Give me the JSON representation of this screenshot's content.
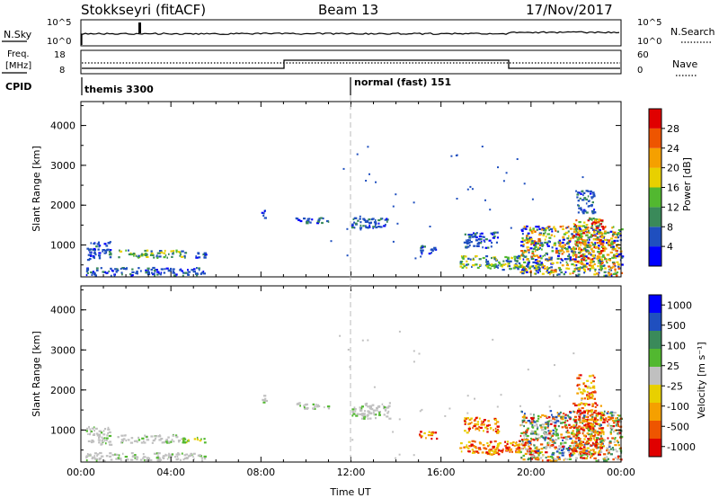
{
  "header": {
    "station": "Stokkseyri (fitACF)",
    "beam": "Beam 13",
    "date": "17/Nov/2017"
  },
  "nsky": {
    "label": "N.Sky",
    "left_ticks": [
      "10^5",
      "10^0"
    ],
    "right_ticks": [
      "10^5",
      "10^0"
    ],
    "right_label": "N.Search"
  },
  "freq": {
    "label": "Freq.",
    "unit": "[MHz]",
    "left_ticks": [
      "18",
      "8"
    ],
    "right_ticks": [
      "60",
      "0"
    ],
    "right_label": "Nave"
  },
  "cpid": {
    "label": "CPID",
    "segments": [
      {
        "start_h": 0,
        "text": "themis 3300"
      },
      {
        "start_h": 12,
        "text": "normal (fast) 151"
      }
    ]
  },
  "colors": {
    "scale": [
      "#0000ff",
      "#1f4fbf",
      "#3a8a5a",
      "#52b830",
      "#e8d000",
      "#f5a000",
      "#ee5500",
      "#e00000"
    ],
    "ground_scatter": "#c0c0c0",
    "midline": "#bbbbbb"
  },
  "chart_data": [
    {
      "type": "heatmap",
      "title": "Power",
      "xlabel": "",
      "ylabel": "Slant Range [km]",
      "xlim": [
        0,
        24
      ],
      "ylim": [
        200,
        4600
      ],
      "x_ticks": [],
      "y_ticks": [
        "1000",
        "2000",
        "3000",
        "4000"
      ],
      "colorbar": {
        "label": "Power [dB]",
        "range": [
          0,
          32
        ],
        "ticks": [
          "4",
          "8",
          "12",
          "16",
          "20",
          "24",
          "28"
        ]
      },
      "echo_regions": [
        {
          "t": [
            0.2,
            5.5
          ],
          "r": [
            250,
            450
          ],
          "level": "low"
        },
        {
          "t": [
            0.2,
            1.3
          ],
          "r": [
            650,
            1100
          ],
          "level": "low"
        },
        {
          "t": [
            1.6,
            4.5
          ],
          "r": [
            700,
            900
          ],
          "level": "mid"
        },
        {
          "t": [
            4.5,
            5.5
          ],
          "r": [
            700,
            850
          ],
          "level": "low"
        },
        {
          "t": [
            8.0,
            8.2
          ],
          "r": [
            1700,
            1900
          ],
          "level": "low"
        },
        {
          "t": [
            9.5,
            11.0
          ],
          "r": [
            1550,
            1700
          ],
          "level": "low"
        },
        {
          "t": [
            12.0,
            13.7
          ],
          "r": [
            1400,
            1700
          ],
          "level": "low"
        },
        {
          "t": [
            15.0,
            15.8
          ],
          "r": [
            800,
            1000
          ],
          "level": "low"
        },
        {
          "t": [
            17.0,
            18.5
          ],
          "r": [
            950,
            1350
          ],
          "level": "low"
        },
        {
          "t": [
            16.8,
            20.0
          ],
          "r": [
            450,
            750
          ],
          "level": "mid"
        },
        {
          "t": [
            18.0,
            20.5
          ],
          "r": [
            400,
            550
          ],
          "level": "mid"
        },
        {
          "t": [
            19.5,
            24.0
          ],
          "r": [
            250,
            1500
          ],
          "level": "mixed"
        },
        {
          "t": [
            21.8,
            23.2
          ],
          "r": [
            400,
            1700
          ],
          "level": "high"
        },
        {
          "t": [
            22.0,
            22.8
          ],
          "r": [
            1800,
            2400
          ],
          "level": "low"
        }
      ]
    },
    {
      "type": "heatmap",
      "title": "Velocity",
      "xlabel": "Time UT",
      "ylabel": "Slant Range [km]",
      "xlim": [
        0,
        24
      ],
      "ylim": [
        200,
        4600
      ],
      "x_ticks": [
        "00:00",
        "04:00",
        "08:00",
        "12:00",
        "16:00",
        "20:00",
        "00:00"
      ],
      "y_ticks": [
        "1000",
        "2000",
        "3000",
        "4000"
      ],
      "colorbar": {
        "label": "Velocity [m s⁻¹]",
        "ticks": [
          "1000",
          "500",
          "100",
          "25",
          "-25",
          "-100",
          "-500",
          "-1000"
        ]
      },
      "echo_regions": [
        {
          "t": [
            0.2,
            5.5
          ],
          "r": [
            250,
            450
          ],
          "level": "gs"
        },
        {
          "t": [
            0.2,
            1.3
          ],
          "r": [
            650,
            1100
          ],
          "level": "gs"
        },
        {
          "t": [
            1.6,
            4.5
          ],
          "r": [
            700,
            900
          ],
          "level": "gs"
        },
        {
          "t": [
            4.5,
            5.5
          ],
          "r": [
            700,
            850
          ],
          "level": "pos"
        },
        {
          "t": [
            8.0,
            8.2
          ],
          "r": [
            1700,
            1900
          ],
          "level": "gs"
        },
        {
          "t": [
            9.5,
            11.0
          ],
          "r": [
            1550,
            1700
          ],
          "level": "gs"
        },
        {
          "t": [
            12.0,
            13.7
          ],
          "r": [
            1300,
            1700
          ],
          "level": "gs"
        },
        {
          "t": [
            15.0,
            15.8
          ],
          "r": [
            800,
            1000
          ],
          "level": "neg"
        },
        {
          "t": [
            17.0,
            18.5
          ],
          "r": [
            950,
            1350
          ],
          "level": "neg"
        },
        {
          "t": [
            16.8,
            20.0
          ],
          "r": [
            450,
            750
          ],
          "level": "neg"
        },
        {
          "t": [
            18.0,
            20.5
          ],
          "r": [
            400,
            550
          ],
          "level": "neg"
        },
        {
          "t": [
            19.5,
            24.0
          ],
          "r": [
            250,
            1500
          ],
          "level": "mixed"
        },
        {
          "t": [
            21.8,
            23.2
          ],
          "r": [
            400,
            1700
          ],
          "level": "neg"
        },
        {
          "t": [
            22.0,
            22.8
          ],
          "r": [
            1800,
            2400
          ],
          "level": "neg"
        }
      ]
    }
  ]
}
